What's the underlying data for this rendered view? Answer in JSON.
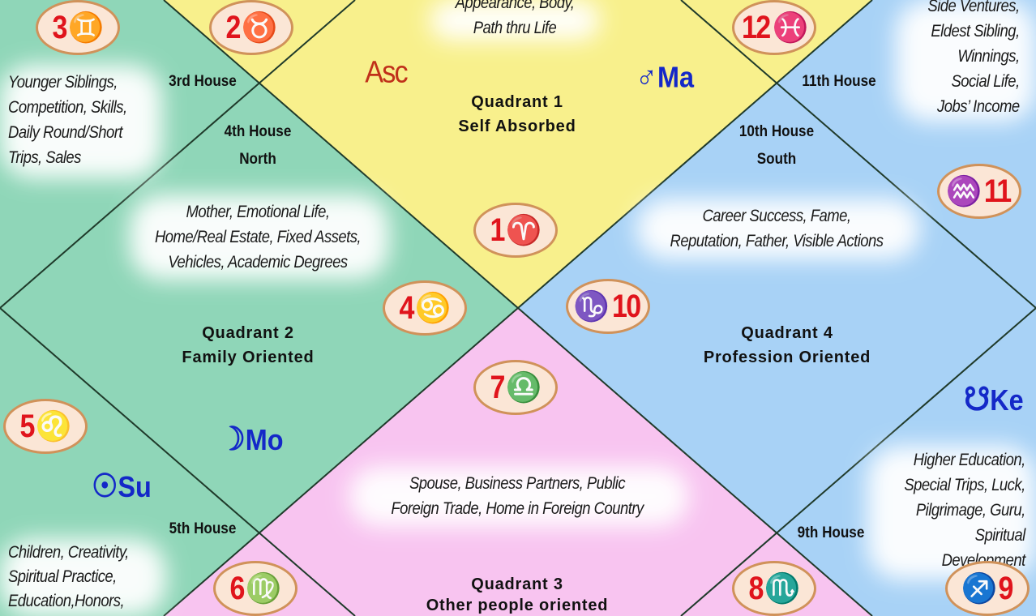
{
  "colors": {
    "quadrant1": "#f8f08c",
    "quadrant2": "#8fd6b8",
    "quadrant3": "#f8c4f0",
    "quadrant4": "#a8d2f6",
    "line": "#1f3a2a",
    "number": "#e0141c",
    "sign": "#d9781e",
    "planet": "#1428c8"
  },
  "houses": {
    "h1": {
      "num": "1",
      "sign": "♈",
      "desc": [
        "Appearance, Body,",
        "Path thru Life"
      ]
    },
    "h2": {
      "num": "2",
      "sign": "♉"
    },
    "h3": {
      "num": "3",
      "sign": "♊",
      "label": "3rd House",
      "desc": [
        "Younger Siblings,",
        "Competition, Skills,",
        "Daily Round/Short",
        "Trips, Sales"
      ]
    },
    "h4": {
      "num": "4",
      "sign": "♋",
      "label": "4th House",
      "direction": "North",
      "desc": [
        "Mother, Emotional Life,",
        "Home/Real Estate, Fixed Assets,",
        "Vehicles, Academic Degrees"
      ]
    },
    "h5": {
      "num": "5",
      "sign": "♌",
      "label": "5th House",
      "desc": [
        "Children, Creativity,",
        "Spiritual Practice,",
        "Education,Honors,"
      ]
    },
    "h6": {
      "num": "6",
      "sign": "♍"
    },
    "h7": {
      "num": "7",
      "sign": "♎",
      "desc": [
        "Spouse, Business Partners, Public",
        "Foreign Trade, Home in Foreign Country"
      ]
    },
    "h8": {
      "num": "8",
      "sign": "♏"
    },
    "h9": {
      "num": "9",
      "sign": "♐",
      "label": "9th House",
      "desc": [
        "Higher Education,",
        "Special Trips, Luck,",
        "Pilgrimage, Guru,",
        "Spiritual",
        "Development"
      ]
    },
    "h10": {
      "num": "10",
      "sign": "♑",
      "label": "10th House",
      "direction": "South",
      "desc": [
        "Career Success, Fame,",
        "Reputation, Father, Visible Actions"
      ]
    },
    "h11": {
      "num": "11",
      "sign": "♒",
      "label": "11th House",
      "desc": [
        "Side Ventures,",
        "Eldest Sibling,",
        "Winnings,",
        "Social Life,",
        "Jobs’ Income"
      ]
    },
    "h12": {
      "num": "12",
      "sign": "♓"
    }
  },
  "quadrants": [
    {
      "line1": "Quadrant 1",
      "line2": "Self Absorbed"
    },
    {
      "line1": "Quadrant 2",
      "line2": "Family Oriented"
    },
    {
      "line1": "Quadrant 3",
      "line2": "Other people oriented"
    },
    {
      "line1": "Quadrant 4",
      "line2": "Profession Oriented"
    }
  ],
  "planets": {
    "asc": {
      "label": "Asc"
    },
    "mars": {
      "glyph": "♂",
      "label": "Ma"
    },
    "moon": {
      "glyph": "☽",
      "label": "Mo"
    },
    "sun": {
      "glyph": "☉",
      "label": "Su"
    },
    "ketu": {
      "glyph": "☋",
      "label": "Ke"
    }
  }
}
